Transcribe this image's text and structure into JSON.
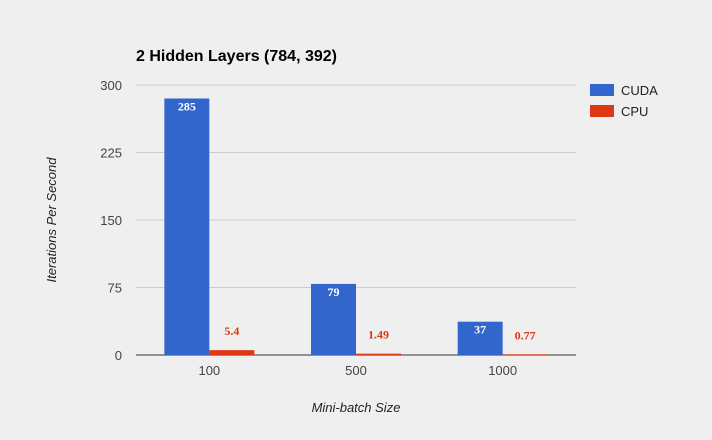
{
  "chart_data": {
    "type": "bar",
    "title": "2 Hidden Layers (784, 392)",
    "xlabel": "Mini-batch Size",
    "ylabel": "Iterations Per Second",
    "categories": [
      "100",
      "500",
      "1000"
    ],
    "series": [
      {
        "name": "CUDA",
        "color": "#3366cc",
        "values": [
          285,
          79,
          37
        ],
        "labels": [
          "285",
          "79",
          "37"
        ]
      },
      {
        "name": "CPU",
        "color": "#dc3912",
        "values": [
          5.4,
          1.49,
          0.77
        ],
        "labels": [
          "5.4",
          "1.49",
          "0.77"
        ]
      }
    ],
    "ylim": [
      0,
      300
    ],
    "yticks": [
      "0",
      "75",
      "150",
      "225",
      "300"
    ],
    "grid": true,
    "legend_position": "right"
  }
}
